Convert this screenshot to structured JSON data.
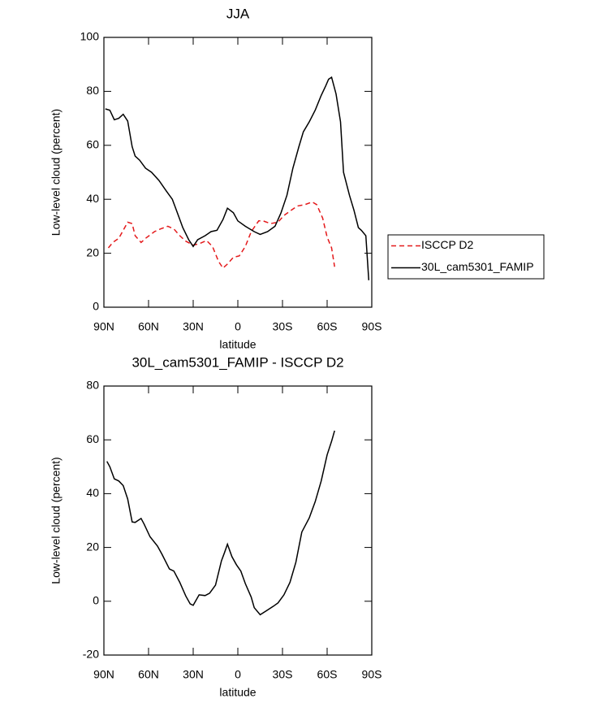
{
  "chart_data": [
    {
      "type": "line",
      "title": "JJA",
      "x_label": "latitude",
      "y_label": "Low-level cloud (percent)",
      "xlim": [
        90,
        -90
      ],
      "xticks": [
        {
          "value": 90,
          "label": "90N"
        },
        {
          "value": 60,
          "label": "60N"
        },
        {
          "value": 30,
          "label": "30N"
        },
        0,
        {
          "value": -30,
          "label": "30S"
        },
        {
          "value": -60,
          "label": "60S"
        },
        {
          "value": -90,
          "label": "90S"
        }
      ],
      "ylim": [
        0,
        100
      ],
      "yticks": [
        0,
        20,
        40,
        60,
        80,
        100
      ],
      "legend": "right",
      "series": [
        {
          "name": "ISCCP D2",
          "color": "#e41a1c",
          "dashed": true,
          "x": [
            87,
            84,
            80,
            77,
            74,
            71,
            69,
            65,
            62,
            56,
            52,
            47,
            43,
            39,
            35,
            30,
            26,
            21,
            17,
            13,
            10,
            7,
            3,
            -1,
            -5,
            -9,
            -14,
            -17,
            -22,
            -27,
            -31,
            -36,
            -40,
            -45,
            -50,
            -53,
            -57,
            -60,
            -63,
            -65
          ],
          "values": [
            22,
            24,
            25.5,
            28.5,
            31.5,
            31,
            26.5,
            24,
            25.5,
            28,
            29,
            30,
            29,
            26.5,
            24.5,
            23,
            23.5,
            24.7,
            22.5,
            17,
            14.5,
            16,
            18.5,
            19,
            22.5,
            28,
            32,
            32,
            31,
            31.5,
            34,
            36,
            37.5,
            38,
            39,
            38,
            33,
            26,
            22,
            15
          ]
        },
        {
          "name": "30L_cam5301_FAMIP",
          "color": "#000000",
          "dashed": false,
          "x": [
            89,
            86,
            83,
            80,
            77,
            74,
            71,
            69,
            66,
            62,
            58,
            53,
            48,
            44,
            40,
            37,
            33,
            30,
            27,
            22,
            18,
            14,
            10,
            7,
            3,
            0,
            -5,
            -11,
            -15,
            -20,
            -25,
            -29,
            -33,
            -37,
            -41,
            -44,
            -48,
            -52,
            -56,
            -59,
            -61,
            -63,
            -66,
            -69,
            -71,
            -75,
            -78,
            -81,
            -83,
            -86,
            -88
          ],
          "values": [
            73.5,
            73,
            69.5,
            70,
            71.5,
            69,
            59.5,
            56,
            54.5,
            51.5,
            50,
            47,
            43,
            40,
            34,
            29.5,
            25,
            22.5,
            25,
            26.5,
            28,
            28.5,
            32.5,
            36.7,
            35,
            32,
            30,
            28,
            27,
            28,
            30,
            35,
            41.5,
            51.5,
            59.5,
            65,
            68.7,
            73,
            78.5,
            82,
            84.5,
            85.2,
            79,
            68.7,
            50,
            41.5,
            36,
            29.5,
            28.5,
            26.5,
            10
          ]
        }
      ]
    },
    {
      "type": "line",
      "title": "30L_cam5301_FAMIP - ISCCP D2",
      "x_label": "latitude",
      "y_label": "Low-level cloud (percent)",
      "xlim": [
        90,
        -90
      ],
      "xticks": [
        {
          "value": 90,
          "label": "90N"
        },
        {
          "value": 60,
          "label": "60N"
        },
        {
          "value": 30,
          "label": "30N"
        },
        0,
        {
          "value": -30,
          "label": "30S"
        },
        {
          "value": -60,
          "label": "60S"
        },
        {
          "value": -90,
          "label": "90S"
        }
      ],
      "ylim": [
        -20,
        80
      ],
      "yticks": [
        -20,
        0,
        20,
        40,
        60,
        80
      ],
      "series": [
        {
          "color": "#000000",
          "dashed": false,
          "x": [
            88,
            86,
            83,
            80,
            77,
            74,
            71,
            69,
            65,
            63,
            59,
            54,
            51,
            46,
            43,
            39,
            35,
            32,
            30,
            26,
            22,
            19,
            15,
            11,
            9,
            7,
            4,
            1,
            -2,
            -5,
            -9,
            -11,
            -15,
            -19,
            -24,
            -27,
            -31,
            -35,
            -39,
            -43,
            -48,
            -52,
            -56,
            -60,
            -63,
            -65
          ],
          "values": [
            52,
            50,
            45.5,
            44.7,
            43,
            38,
            29.5,
            29.3,
            30.8,
            28.7,
            24,
            20.5,
            17.5,
            12,
            11.2,
            7,
            2,
            -1,
            -1.5,
            2.4,
            2.1,
            3,
            6,
            15,
            18,
            21.2,
            16.6,
            13.6,
            11.2,
            6.6,
            1.5,
            -2.4,
            -5,
            -3.6,
            -1.8,
            -0.6,
            2.4,
            7,
            14.5,
            25.7,
            31,
            37,
            44.7,
            54.4,
            59.5,
            63.4
          ]
        }
      ]
    }
  ]
}
